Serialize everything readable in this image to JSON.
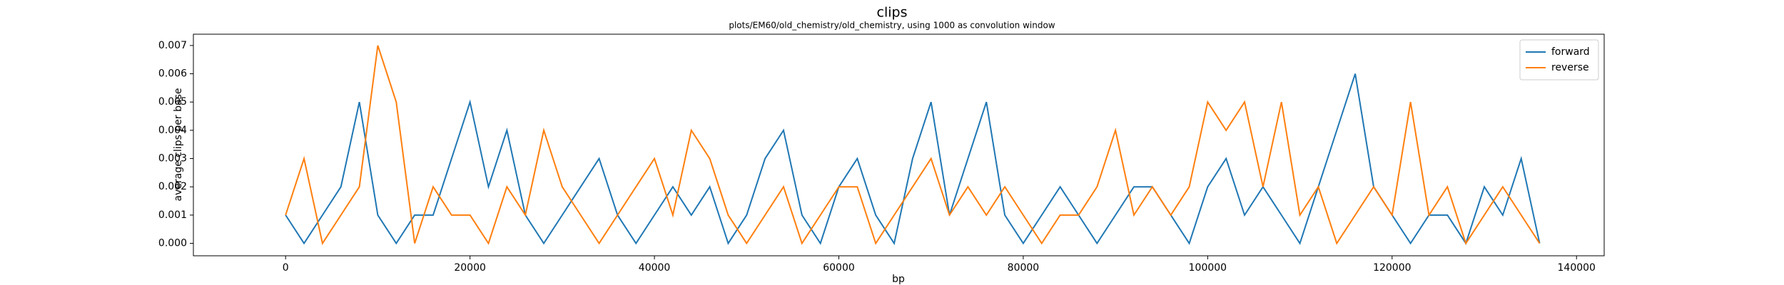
{
  "chart_data": {
    "type": "line",
    "title": "clips",
    "subtitle": "plots/EM60/old_chemistry/old_chemistry, using 1000 as convolution window",
    "xlabel": "bp",
    "ylabel": "average clips per base",
    "x": [
      0,
      2000,
      4000,
      6000,
      8000,
      10000,
      12000,
      14000,
      16000,
      18000,
      20000,
      22000,
      24000,
      26000,
      28000,
      30000,
      32000,
      34000,
      36000,
      38000,
      40000,
      42000,
      44000,
      46000,
      48000,
      50000,
      52000,
      54000,
      56000,
      58000,
      60000,
      62000,
      64000,
      66000,
      68000,
      70000,
      72000,
      74000,
      76000,
      78000,
      80000,
      82000,
      84000,
      86000,
      88000,
      90000,
      92000,
      94000,
      96000,
      98000,
      100000,
      102000,
      104000,
      106000,
      108000,
      110000,
      112000,
      114000,
      116000,
      118000,
      120000,
      122000,
      124000,
      126000,
      128000,
      130000,
      132000,
      134000,
      136000
    ],
    "series": [
      {
        "name": "forward",
        "color": "#1f77b4",
        "values": [
          0.001,
          0.0,
          0.001,
          0.002,
          0.005,
          0.001,
          0.0,
          0.001,
          0.001,
          0.003,
          0.005,
          0.002,
          0.004,
          0.001,
          0.0,
          0.001,
          0.002,
          0.003,
          0.001,
          0.0,
          0.001,
          0.002,
          0.001,
          0.002,
          0.0,
          0.001,
          0.003,
          0.004,
          0.001,
          0.0,
          0.002,
          0.003,
          0.001,
          0.0,
          0.003,
          0.005,
          0.001,
          0.003,
          0.005,
          0.001,
          0.0,
          0.001,
          0.002,
          0.001,
          0.0,
          0.001,
          0.002,
          0.002,
          0.001,
          0.0,
          0.002,
          0.003,
          0.001,
          0.002,
          0.001,
          0.0,
          0.002,
          0.004,
          0.006,
          0.002,
          0.001,
          0.0,
          0.001,
          0.001,
          0.0,
          0.002,
          0.001,
          0.003,
          0.0
        ]
      },
      {
        "name": "reverse",
        "color": "#ff7f0e",
        "values": [
          0.001,
          0.003,
          0.0,
          0.001,
          0.002,
          0.007,
          0.005,
          0.0,
          0.002,
          0.001,
          0.001,
          0.0,
          0.002,
          0.001,
          0.004,
          0.002,
          0.001,
          0.0,
          0.001,
          0.002,
          0.003,
          0.001,
          0.004,
          0.003,
          0.001,
          0.0,
          0.001,
          0.002,
          0.0,
          0.001,
          0.002,
          0.002,
          0.0,
          0.001,
          0.002,
          0.003,
          0.001,
          0.002,
          0.001,
          0.002,
          0.001,
          0.0,
          0.001,
          0.001,
          0.002,
          0.004,
          0.001,
          0.002,
          0.001,
          0.002,
          0.005,
          0.004,
          0.005,
          0.002,
          0.005,
          0.001,
          0.002,
          0.0,
          0.001,
          0.002,
          0.001,
          0.005,
          0.001,
          0.002,
          0.0,
          0.001,
          0.002,
          0.001,
          0.0
        ]
      }
    ],
    "xlim": [
      -10000,
      143000
    ],
    "xticks": [
      0,
      20000,
      40000,
      60000,
      80000,
      100000,
      120000,
      140000
    ],
    "ylim": [
      -0.00044,
      0.0074
    ],
    "yticks": [
      {
        "value": 0,
        "label": "0.000"
      },
      {
        "value": 0.001,
        "label": "0.001"
      },
      {
        "value": 0.002,
        "label": "0.002"
      },
      {
        "value": 0.003,
        "label": "0.003"
      },
      {
        "value": 0.004,
        "label": "0.004"
      },
      {
        "value": 0.005,
        "label": "0.005"
      },
      {
        "value": 0.006,
        "label": "0.006"
      },
      {
        "value": 0.007,
        "label": "0.007"
      }
    ],
    "legend": "upper right"
  }
}
